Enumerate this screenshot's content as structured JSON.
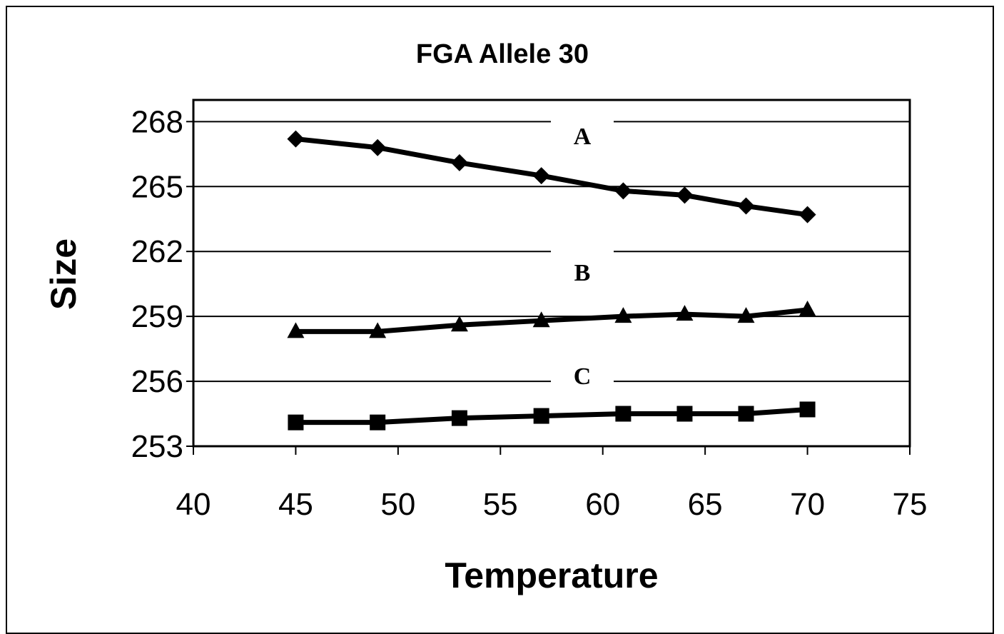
{
  "chart_data": {
    "type": "line",
    "title": "FGA Allele 30",
    "xlabel": "Temperature",
    "ylabel": "Size",
    "xlim": [
      40,
      75
    ],
    "ylim": [
      253,
      269
    ],
    "xticks": [
      40,
      45,
      50,
      55,
      60,
      65,
      70,
      75
    ],
    "yticks": [
      253,
      256,
      259,
      262,
      265,
      268
    ],
    "grid": "horizontal",
    "legend": "none",
    "series": [
      {
        "name": "A",
        "marker": "diamond",
        "x": [
          45,
          49,
          53,
          57,
          61,
          64,
          67,
          70
        ],
        "values": [
          267.2,
          266.8,
          266.1,
          265.5,
          264.8,
          264.6,
          264.1,
          263.7
        ]
      },
      {
        "name": "B",
        "marker": "triangle",
        "x": [
          45,
          49,
          53,
          57,
          61,
          64,
          67,
          70
        ],
        "values": [
          258.3,
          258.3,
          258.6,
          258.8,
          259.0,
          259.1,
          259.0,
          259.3
        ]
      },
      {
        "name": "C",
        "marker": "square",
        "x": [
          45,
          49,
          53,
          57,
          61,
          64,
          67,
          70
        ],
        "values": [
          254.1,
          254.1,
          254.3,
          254.4,
          254.5,
          254.5,
          254.5,
          254.7
        ]
      }
    ]
  }
}
